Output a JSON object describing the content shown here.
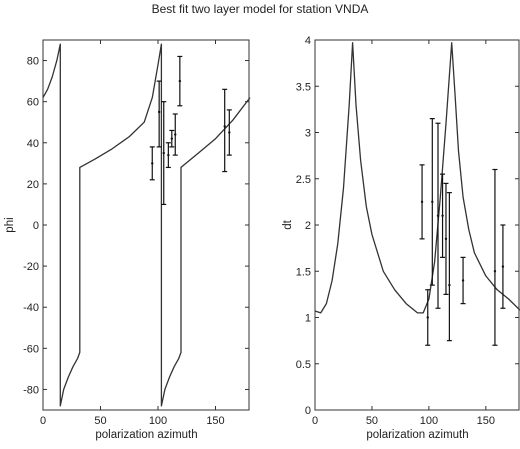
{
  "figure_title": "Best fit two layer model for station VNDA",
  "chart_data": [
    {
      "type": "line",
      "title": "",
      "xlabel": "polarization azimuth",
      "ylabel": "phi",
      "xlim": [
        0,
        180
      ],
      "ylim": [
        -90,
        90
      ],
      "xticks": [
        "0",
        "50",
        "100",
        "150"
      ],
      "yticks": [
        "-80",
        "-60",
        "-40",
        "-20",
        "0",
        "20",
        "40",
        "60",
        "80"
      ],
      "grid": false,
      "curve": {
        "x": [
          0,
          4,
          8,
          12,
          15,
          15,
          18,
          22,
          26,
          30,
          32,
          32,
          45,
          60,
          75,
          88,
          95,
          100,
          103,
          103,
          106,
          110,
          114,
          118,
          120,
          120,
          135,
          150,
          165,
          180
        ],
        "y": [
          62,
          66,
          72,
          80,
          88,
          -88,
          -80,
          -74,
          -69,
          -65,
          -62,
          28,
          32,
          37,
          43,
          50,
          62,
          78,
          88,
          -88,
          -80,
          -74,
          -69,
          -65,
          -62,
          28,
          35,
          42,
          51,
          62
        ]
      },
      "error_bars": [
        {
          "x": 95,
          "y": 30,
          "lo": 22,
          "hi": 38
        },
        {
          "x": 101,
          "y": 55,
          "lo": 38,
          "hi": 70
        },
        {
          "x": 105,
          "y": 35,
          "lo": 10,
          "hi": 60
        },
        {
          "x": 109,
          "y": 34,
          "lo": 28,
          "hi": 40
        },
        {
          "x": 112,
          "y": 42,
          "lo": 38,
          "hi": 46
        },
        {
          "x": 115,
          "y": 44,
          "lo": 34,
          "hi": 54
        },
        {
          "x": 119,
          "y": 70,
          "lo": 58,
          "hi": 82
        },
        {
          "x": 158,
          "y": 48,
          "lo": 26,
          "hi": 66
        },
        {
          "x": 162,
          "y": 45,
          "lo": 34,
          "hi": 56
        }
      ]
    },
    {
      "type": "line",
      "title": "",
      "xlabel": "polarization azimuth",
      "ylabel": "dt",
      "xlim": [
        0,
        180
      ],
      "ylim": [
        0,
        4
      ],
      "xticks": [
        "0",
        "50",
        "100",
        "150"
      ],
      "yticks": [
        "0",
        "0.5",
        "1",
        "1.5",
        "2",
        "2.5",
        "3",
        "3.5",
        "4"
      ],
      "grid": false,
      "curve": {
        "x": [
          0,
          5,
          10,
          15,
          20,
          25,
          30,
          33,
          36,
          40,
          45,
          50,
          60,
          70,
          80,
          90,
          95,
          100,
          105,
          110,
          115,
          120,
          123,
          126,
          130,
          135,
          140,
          150,
          160,
          170,
          180
        ],
        "y": [
          1.07,
          1.05,
          1.15,
          1.4,
          1.8,
          2.4,
          3.3,
          3.97,
          3.3,
          2.7,
          2.2,
          1.9,
          1.5,
          1.3,
          1.15,
          1.05,
          1.05,
          1.2,
          1.6,
          2.3,
          3.1,
          3.97,
          3.4,
          2.8,
          2.3,
          1.95,
          1.7,
          1.45,
          1.3,
          1.2,
          1.08
        ]
      },
      "error_bars": [
        {
          "x": 94,
          "y": 2.25,
          "lo": 1.85,
          "hi": 2.65
        },
        {
          "x": 99,
          "y": 1.0,
          "lo": 0.7,
          "hi": 1.3
        },
        {
          "x": 103,
          "y": 2.25,
          "lo": 1.35,
          "hi": 3.15
        },
        {
          "x": 108,
          "y": 2.1,
          "lo": 1.1,
          "hi": 3.1
        },
        {
          "x": 112,
          "y": 2.1,
          "lo": 1.65,
          "hi": 2.55
        },
        {
          "x": 115,
          "y": 1.85,
          "lo": 1.25,
          "hi": 2.45
        },
        {
          "x": 118,
          "y": 1.35,
          "lo": 0.75,
          "hi": 2.35
        },
        {
          "x": 130,
          "y": 1.4,
          "lo": 1.15,
          "hi": 1.65
        },
        {
          "x": 158,
          "y": 1.5,
          "lo": 0.7,
          "hi": 2.6
        },
        {
          "x": 165,
          "y": 1.55,
          "lo": 1.1,
          "hi": 2.0
        }
      ]
    }
  ]
}
